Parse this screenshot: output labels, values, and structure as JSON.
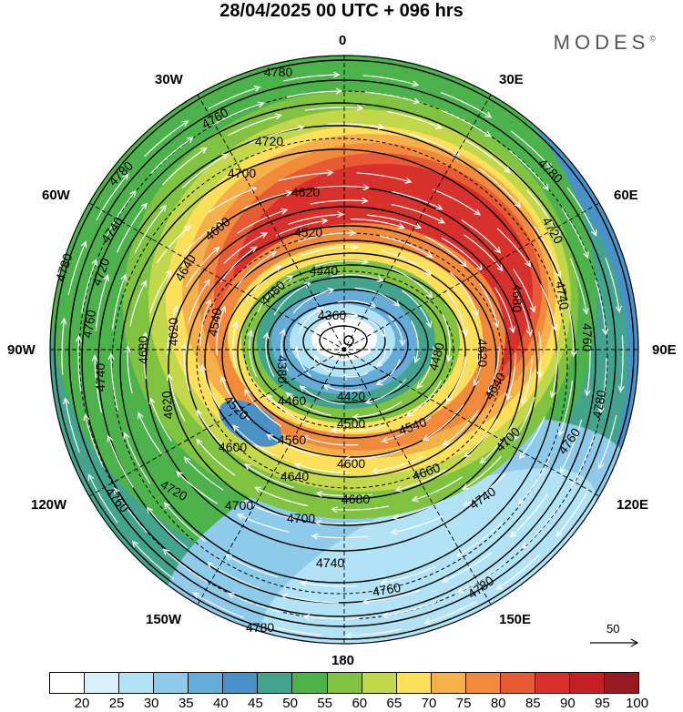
{
  "title": "28/04/2025  00 UTC  + 096 hrs",
  "brand": "MODES",
  "brand_mark": "©",
  "longitude_labels": {
    "l0": "0",
    "l30e": "30E",
    "l60e": "60E",
    "l90e": "90E",
    "l120e": "120E",
    "l150e": "150E",
    "l180": "180",
    "l150w": "150W",
    "l120w": "120W",
    "l90w": "90W",
    "l60w": "60W",
    "l30w": "30W"
  },
  "legend": {
    "ticks": [
      "20",
      "25",
      "30",
      "35",
      "40",
      "45",
      "50",
      "55",
      "60",
      "65",
      "70",
      "75",
      "80",
      "85",
      "90",
      "95",
      "100"
    ],
    "colors": [
      "#ffffff",
      "#d6f0fb",
      "#b2e2f5",
      "#8ecbea",
      "#66acd9",
      "#4892c8",
      "#42a48d",
      "#4bb349",
      "#80c341",
      "#c2d84a",
      "#fce059",
      "#f6b04a",
      "#f28a3c",
      "#e85a31",
      "#d8302b",
      "#c51f26",
      "#971b1f"
    ]
  },
  "vector_reference": "50",
  "contour_labels": [
    {
      "text": "4780"
    },
    {
      "text": "4760"
    },
    {
      "text": "4740"
    },
    {
      "text": "4720"
    },
    {
      "text": "4700"
    },
    {
      "text": "4680"
    },
    {
      "text": "4660"
    },
    {
      "text": "4640"
    },
    {
      "text": "4620"
    },
    {
      "text": "4600"
    },
    {
      "text": "4580"
    },
    {
      "text": "4560"
    },
    {
      "text": "4540"
    },
    {
      "text": "4520"
    },
    {
      "text": "4500"
    },
    {
      "text": "4480"
    },
    {
      "text": "4460"
    },
    {
      "text": "4440"
    },
    {
      "text": "4420"
    },
    {
      "text": "4380"
    },
    {
      "text": "4360"
    }
  ]
}
